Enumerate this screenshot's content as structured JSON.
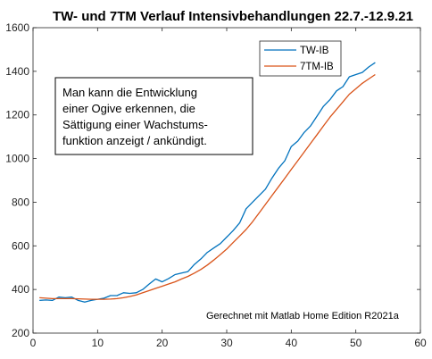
{
  "chart_data": {
    "type": "line",
    "title": "TW- und 7TM Verlauf Intensivbehandlungen 22.7.-12.9.21",
    "xlabel": "",
    "ylabel": "",
    "xlim": [
      0,
      60
    ],
    "ylim": [
      200,
      1600
    ],
    "xticks": [
      0,
      10,
      20,
      30,
      40,
      50,
      60
    ],
    "yticks": [
      200,
      400,
      600,
      800,
      1000,
      1200,
      1400,
      1600
    ],
    "grid": false,
    "legend_position": "top-right",
    "series": [
      {
        "name": "TW-IB",
        "color": "#0072BD",
        "x": [
          1,
          2,
          3,
          4,
          5,
          6,
          7,
          8,
          9,
          10,
          11,
          12,
          13,
          14,
          15,
          16,
          17,
          18,
          19,
          20,
          21,
          22,
          23,
          24,
          25,
          26,
          27,
          28,
          29,
          30,
          31,
          32,
          33,
          34,
          35,
          36,
          37,
          38,
          39,
          40,
          41,
          42,
          43,
          44,
          45,
          46,
          47,
          48,
          49,
          50,
          51,
          52,
          53
        ],
        "values": [
          350,
          352,
          350,
          365,
          362,
          365,
          350,
          342,
          350,
          355,
          360,
          372,
          372,
          385,
          382,
          385,
          400,
          425,
          448,
          435,
          450,
          468,
          475,
          482,
          515,
          540,
          570,
          590,
          610,
          640,
          670,
          705,
          770,
          800,
          830,
          860,
          910,
          955,
          990,
          1055,
          1080,
          1120,
          1150,
          1195,
          1240,
          1270,
          1310,
          1330,
          1375,
          1385,
          1395,
          1420,
          1440
        ]
      },
      {
        "name": "7TM-IB",
        "color": "#D95319",
        "x": [
          1,
          2,
          3,
          4,
          5,
          6,
          7,
          8,
          9,
          10,
          11,
          12,
          13,
          14,
          15,
          16,
          17,
          18,
          19,
          20,
          21,
          22,
          23,
          24,
          25,
          26,
          27,
          28,
          29,
          30,
          31,
          32,
          33,
          34,
          35,
          36,
          37,
          38,
          39,
          40,
          41,
          42,
          43,
          44,
          45,
          46,
          47,
          48,
          49,
          50,
          51,
          52,
          53
        ],
        "values": [
          362,
          360,
          358,
          358,
          358,
          358,
          357,
          356,
          355,
          355,
          355,
          356,
          358,
          362,
          368,
          375,
          385,
          395,
          405,
          415,
          425,
          435,
          448,
          460,
          475,
          492,
          512,
          535,
          560,
          585,
          615,
          645,
          675,
          710,
          750,
          790,
          830,
          870,
          910,
          950,
          990,
          1030,
          1070,
          1110,
          1150,
          1190,
          1225,
          1260,
          1295,
          1320,
          1345,
          1365,
          1385
        ]
      }
    ]
  },
  "annotation": {
    "lines": [
      "Man kann die Entwicklung",
      "einer Ogive erkennen, die",
      "Sättigung einer Wachstums-",
      "funktion anzeigt / ankündigt."
    ]
  },
  "credit": "Gerechnet mit Matlab Home Edition R2021a"
}
